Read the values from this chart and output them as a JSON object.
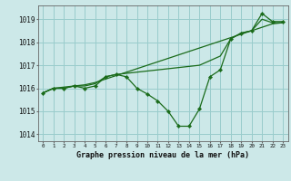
{
  "title": "Graphe pression niveau de la mer (hPa)",
  "background_color": "#cce8e8",
  "plot_bg_color": "#cce8e8",
  "grid_color": "#99cccc",
  "line_color": "#1a6b1a",
  "marker_color": "#1a6b1a",
  "ylim": [
    1013.7,
    1019.6
  ],
  "yticks": [
    1014,
    1015,
    1016,
    1017,
    1018,
    1019
  ],
  "xlim": [
    -0.5,
    23.5
  ],
  "xticks": [
    0,
    1,
    2,
    3,
    4,
    5,
    6,
    7,
    8,
    9,
    10,
    11,
    12,
    13,
    14,
    15,
    16,
    17,
    18,
    19,
    20,
    21,
    22,
    23
  ],
  "xtick_labels": [
    "0",
    "1",
    "2",
    "3",
    "4",
    "5",
    "6",
    "7",
    "8",
    "9",
    "10",
    "11",
    "12",
    "13",
    "14",
    "15",
    "16",
    "17",
    "18",
    "19",
    "20",
    "21",
    "22",
    "23"
  ],
  "hours": [
    0,
    1,
    2,
    3,
    4,
    5,
    6,
    7,
    8,
    9,
    10,
    11,
    12,
    13,
    14,
    15,
    16,
    17,
    18,
    19,
    20,
    21,
    22,
    23
  ],
  "pressure_main": [
    1015.8,
    1016.0,
    1016.0,
    1016.1,
    1016.0,
    1016.1,
    1016.5,
    1016.6,
    1016.5,
    1016.0,
    1015.75,
    1015.45,
    1015.0,
    1014.35,
    1014.35,
    1015.1,
    1016.5,
    1016.8,
    1018.15,
    1018.4,
    1018.5,
    1019.25,
    1018.9,
    1018.9
  ],
  "pressure_line2": [
    1015.8,
    1016.0,
    1016.0,
    1016.1,
    1016.1,
    1016.2,
    1016.5,
    1016.6,
    1016.65,
    1016.7,
    1016.75,
    1016.8,
    1016.85,
    1016.9,
    1016.95,
    1017.0,
    1017.2,
    1017.4,
    1018.15,
    1018.4,
    1018.5,
    1019.0,
    1018.85,
    1018.85
  ],
  "pressure_line3": [
    1015.8,
    1016.0,
    1016.05,
    1016.1,
    1016.15,
    1016.25,
    1016.4,
    1016.55,
    1016.7,
    1016.85,
    1017.0,
    1017.15,
    1017.3,
    1017.45,
    1017.6,
    1017.75,
    1017.9,
    1018.05,
    1018.2,
    1018.35,
    1018.5,
    1018.65,
    1018.8,
    1018.85
  ]
}
